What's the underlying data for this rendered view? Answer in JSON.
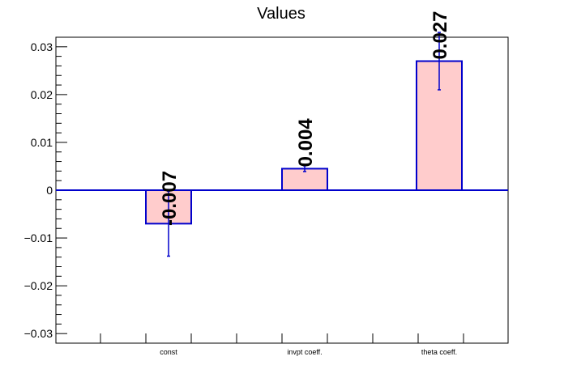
{
  "chart_data": {
    "type": "bar",
    "title": "Values",
    "categories": [
      "const",
      "invpt coeff.",
      "theta coeff."
    ],
    "values": [
      -0.007,
      0.0045,
      0.027
    ],
    "errors": [
      0.0068,
      0.0006,
      0.006
    ],
    "value_labels": [
      "-0.007",
      "0.004",
      "0.027"
    ],
    "ylim": [
      -0.032,
      0.032
    ],
    "yticks": [
      -0.03,
      -0.02,
      -0.01,
      0,
      0.01,
      0.02,
      0.03
    ],
    "ytick_labels": [
      "−0.03",
      "−0.02",
      "−0.01",
      "0",
      "0.01",
      "0.02",
      "0.03"
    ],
    "xlabel": "",
    "ylabel": "",
    "grid": false,
    "colors": {
      "bar_fill": "#ffcccc",
      "bar_stroke": "#0000cc",
      "error": "#0000cc",
      "zero_line": "#0000cc",
      "axis": "#000000"
    }
  }
}
